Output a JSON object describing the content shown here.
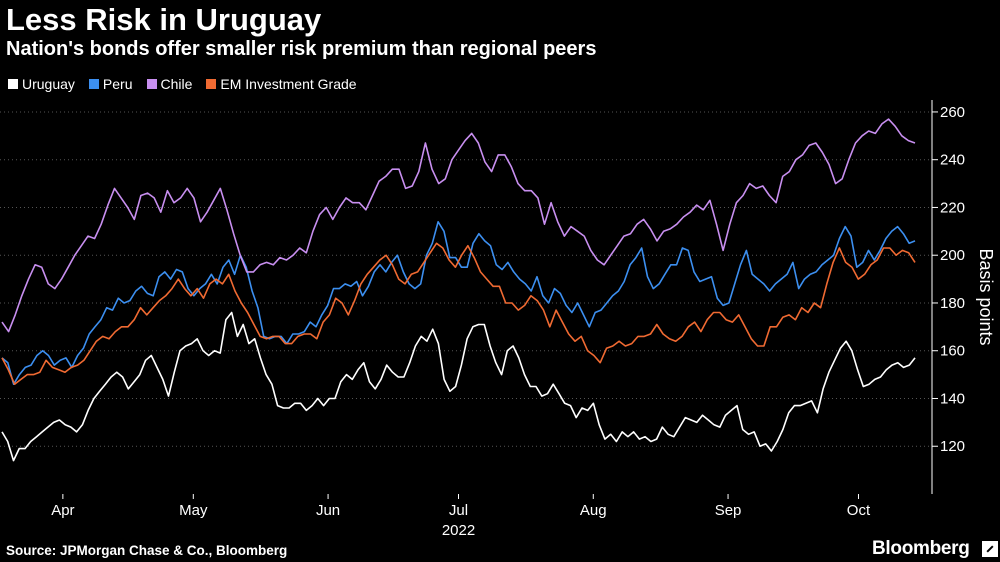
{
  "chart_data": {
    "type": "line",
    "title": "Less Risk in Uruguay",
    "subtitle": "Nation's bonds offer smaller risk premium than regional peers",
    "ylabel": "Basis points",
    "xlabel": "",
    "ylim": [
      100,
      265
    ],
    "yticks": [
      120,
      140,
      160,
      180,
      200,
      220,
      240,
      260
    ],
    "xtick_labels": [
      "Apr",
      "May",
      "Jun",
      "Jul",
      "Aug",
      "Sep",
      "Oct"
    ],
    "xtick_days": [
      14,
      44,
      75,
      105,
      136,
      167,
      197
    ],
    "x_sublabel": "2022",
    "xlim_days": [
      0,
      210
    ],
    "source": "Source: JPMorgan Chase & Co., Bloomberg",
    "brand": "Bloomberg",
    "series": [
      {
        "name": "Uruguay",
        "color": "#ffffff",
        "values": [
          126,
          122,
          114,
          119,
          119,
          122,
          124,
          126,
          128,
          130,
          131,
          129,
          128,
          126,
          129,
          135,
          140,
          143,
          146,
          149,
          151,
          149,
          144,
          147,
          150,
          156,
          158,
          153,
          148,
          141,
          151,
          160,
          162,
          163,
          165,
          160,
          158,
          160,
          159,
          173,
          176,
          166,
          171,
          163,
          165,
          157,
          150,
          146,
          137,
          136,
          136,
          138,
          138,
          135,
          137,
          140,
          137,
          140,
          140,
          147,
          150,
          148,
          152,
          155,
          147,
          144,
          148,
          154,
          151,
          149,
          149,
          155,
          162,
          166,
          164,
          169,
          163,
          148,
          143,
          145,
          154,
          165,
          170,
          171,
          171,
          162,
          155,
          150,
          160,
          162,
          157,
          150,
          145,
          145,
          141,
          142,
          146,
          142,
          138,
          137,
          132,
          136,
          135,
          138,
          129,
          123,
          125,
          122,
          126,
          124,
          126,
          123,
          124,
          122,
          123,
          128,
          125,
          124,
          128,
          132,
          131,
          130,
          133,
          131,
          129,
          128,
          133,
          135,
          137,
          127,
          125,
          126,
          120,
          121,
          118,
          122,
          127,
          134,
          137,
          137,
          138,
          139,
          134,
          144,
          151,
          156,
          161,
          164,
          160,
          152,
          145,
          146,
          148,
          149,
          152,
          154,
          155,
          153,
          154,
          157
        ]
      },
      {
        "name": "Peru",
        "color": "#3c8ff0",
        "values": [
          157,
          155,
          146,
          150,
          153,
          154,
          158,
          160,
          158,
          154,
          156,
          157,
          153,
          158,
          161,
          167,
          170,
          173,
          178,
          177,
          182,
          180,
          181,
          185,
          187,
          184,
          183,
          191,
          193,
          190,
          194,
          193,
          186,
          183,
          186,
          188,
          192,
          188,
          195,
          198,
          192,
          200,
          195,
          185,
          178,
          166,
          165,
          166,
          166,
          163,
          167,
          167,
          168,
          172,
          170,
          175,
          179,
          186,
          186,
          188,
          187,
          189,
          183,
          187,
          193,
          196,
          193,
          197,
          200,
          193,
          188,
          186,
          188,
          200,
          205,
          214,
          210,
          199,
          199,
          195,
          195,
          205,
          209,
          206,
          204,
          196,
          194,
          197,
          193,
          190,
          188,
          185,
          191,
          183,
          180,
          186,
          184,
          179,
          176,
          180,
          175,
          170,
          176,
          177,
          180,
          183,
          185,
          189,
          196,
          199,
          203,
          191,
          186,
          188,
          192,
          196,
          196,
          203,
          202,
          193,
          189,
          190,
          191,
          182,
          179,
          180,
          188,
          196,
          202,
          192,
          190,
          188,
          185,
          188,
          190,
          192,
          197,
          186,
          190,
          192,
          193,
          196,
          198,
          200,
          207,
          212,
          208,
          195,
          197,
          202,
          198,
          202,
          207,
          210,
          212,
          209,
          205,
          206
        ]
      },
      {
        "name": "Chile",
        "color": "#c88ff0",
        "values": [
          172,
          168,
          175,
          183,
          190,
          196,
          195,
          188,
          186,
          190,
          195,
          200,
          204,
          208,
          207,
          213,
          221,
          228,
          224,
          220,
          215,
          225,
          226,
          224,
          218,
          227,
          222,
          224,
          228,
          224,
          214,
          218,
          223,
          228,
          219,
          209,
          200,
          193,
          193,
          196,
          197,
          196,
          199,
          198,
          200,
          203,
          201,
          210,
          217,
          220,
          215,
          220,
          224,
          222,
          222,
          219,
          225,
          231,
          233,
          236,
          236,
          228,
          229,
          235,
          247,
          236,
          230,
          232,
          240,
          244,
          248,
          251,
          247,
          239,
          235,
          242,
          242,
          237,
          230,
          227,
          227,
          224,
          213,
          222,
          214,
          208,
          212,
          210,
          208,
          202,
          198,
          196,
          200,
          204,
          208,
          209,
          213,
          215,
          211,
          206,
          210,
          211,
          213,
          216,
          218,
          221,
          219,
          223,
          213,
          202,
          213,
          222,
          225,
          230,
          228,
          229,
          225,
          222,
          233,
          235,
          240,
          242,
          246,
          247,
          243,
          238,
          230,
          232,
          240,
          247,
          250,
          252,
          251,
          255,
          257,
          254,
          250,
          248,
          247
        ]
      },
      {
        "name": "EM Investment Grade",
        "color": "#f06a32",
        "values": [
          157,
          152,
          146,
          148,
          150,
          150,
          151,
          156,
          153,
          152,
          151,
          153,
          154,
          156,
          160,
          164,
          166,
          165,
          168,
          170,
          170,
          173,
          178,
          175,
          178,
          181,
          183,
          186,
          190,
          186,
          183,
          186,
          182,
          188,
          190,
          188,
          192,
          185,
          180,
          176,
          171,
          166,
          165,
          166,
          166,
          163,
          163,
          166,
          167,
          167,
          165,
          172,
          175,
          182,
          180,
          175,
          181,
          188,
          192,
          195,
          198,
          200,
          196,
          190,
          188,
          192,
          193,
          197,
          201,
          205,
          203,
          198,
          195,
          200,
          204,
          199,
          193,
          190,
          187,
          187,
          180,
          180,
          177,
          179,
          183,
          181,
          177,
          170,
          177,
          172,
          167,
          164,
          166,
          160,
          158,
          155,
          161,
          162,
          164,
          162,
          163,
          166,
          166,
          167,
          171,
          167,
          165,
          164,
          166,
          170,
          172,
          168,
          173,
          176,
          176,
          173,
          172,
          175,
          170,
          165,
          162,
          162,
          170,
          170,
          174,
          175,
          173,
          178,
          176,
          180,
          178,
          188,
          197,
          203,
          197,
          195,
          190,
          192,
          196,
          198,
          203,
          203,
          200,
          202,
          201,
          197
        ]
      }
    ]
  }
}
